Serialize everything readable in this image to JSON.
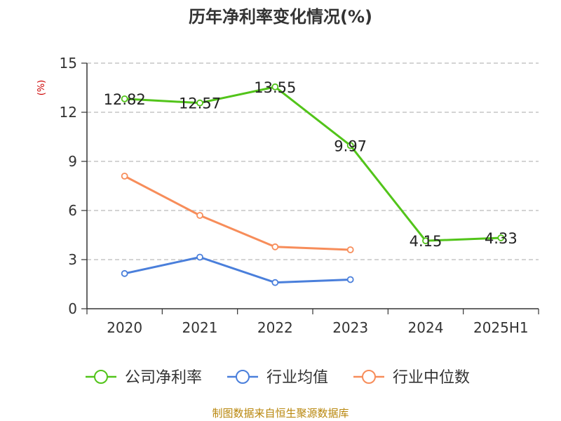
{
  "chart_data": {
    "type": "line",
    "title": "历年净利率变化情况(%)",
    "xlabel": "",
    "ylabel": "(%)",
    "categories": [
      "2020",
      "2021",
      "2022",
      "2023",
      "2024",
      "2025H1"
    ],
    "ylim": [
      0,
      15
    ],
    "yticks": [
      0,
      3,
      6,
      9,
      12,
      15
    ],
    "grid": true,
    "legend_position": "bottom",
    "series": [
      {
        "name": "公司净利率",
        "color": "#52c41a",
        "values": [
          12.82,
          12.57,
          13.55,
          9.97,
          4.15,
          4.33
        ],
        "labels": [
          "12.82",
          "12.57",
          "13.55",
          "9.97",
          "4.15",
          "4.33"
        ]
      },
      {
        "name": "行业均值",
        "color": "#4a7fdb",
        "values": [
          2.15,
          3.15,
          1.6,
          1.78,
          null,
          null
        ]
      },
      {
        "name": "行业中位数",
        "color": "#f78d5a",
        "values": [
          8.1,
          5.7,
          3.78,
          3.6,
          null,
          null
        ]
      }
    ],
    "source": "制图数据来自恒生聚源数据库"
  }
}
